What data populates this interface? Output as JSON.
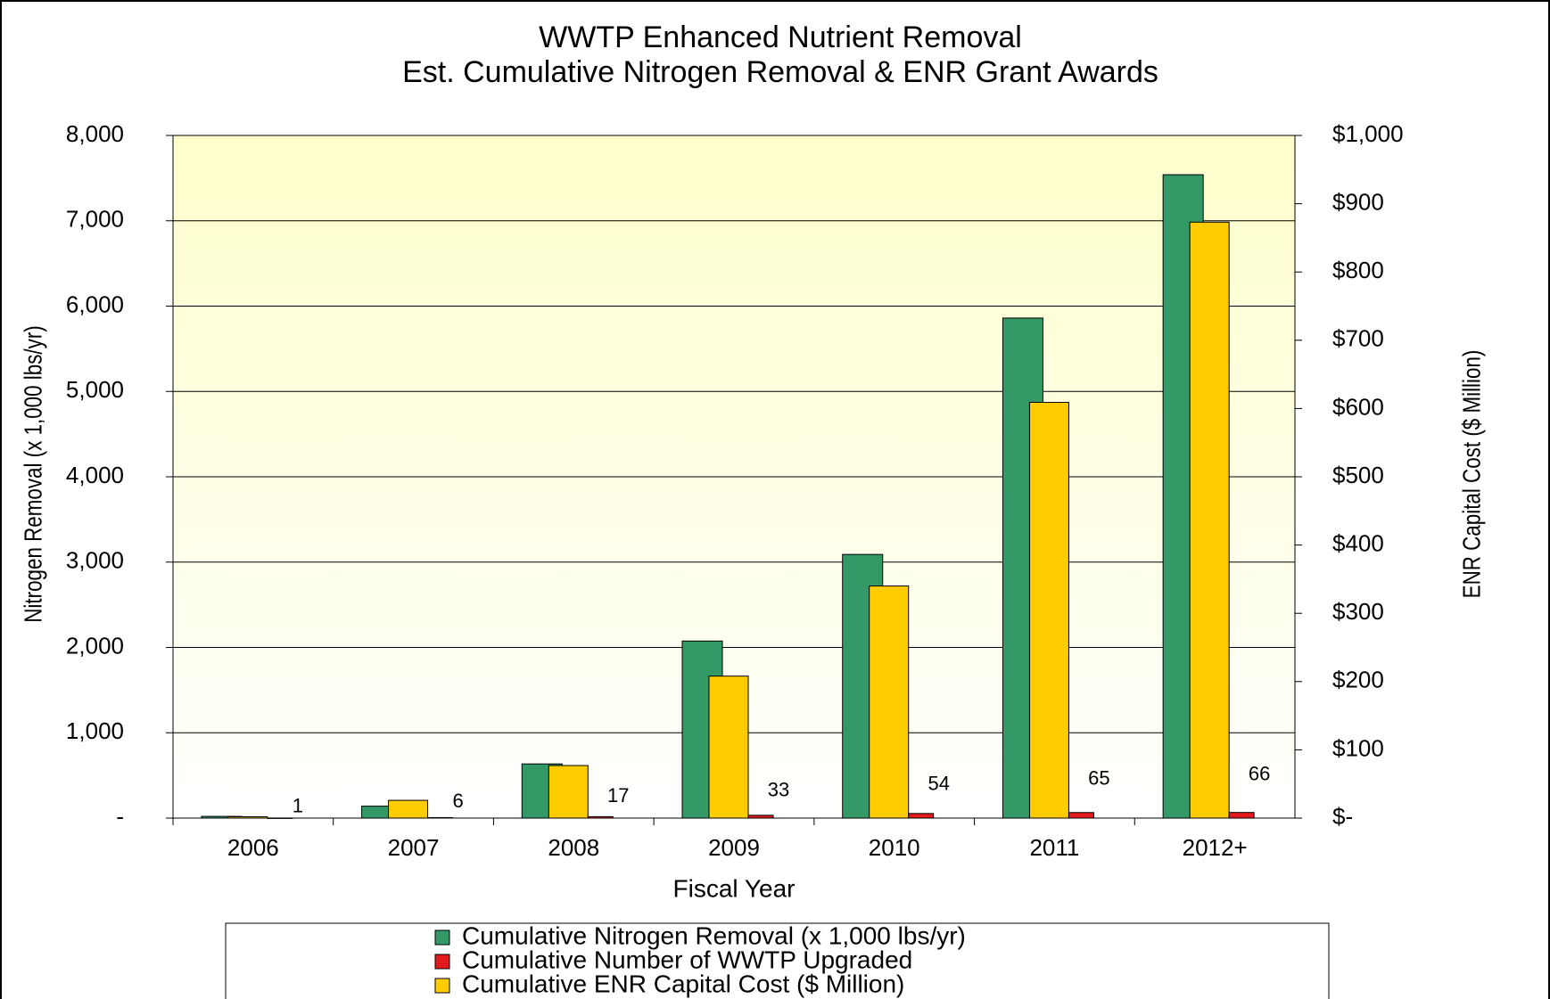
{
  "chart_data": {
    "type": "bar",
    "title": "WWTP Enhanced Nutrient Removal",
    "subtitle": "Est. Cumulative Nitrogen Removal & ENR Grant Awards",
    "x_label": "Fiscal Year",
    "y_label": "Nitrogen Removal (x 1,000 lbs/yr)",
    "y2_label": "ENR Capital Cost ($ Million)",
    "categories": [
      "2006",
      "2007",
      "2008",
      "2009",
      "2010",
      "2011",
      "2012+"
    ],
    "series": [
      {
        "name": "Cumulative Nitrogen Removal (x 1,000 lbs/yr)",
        "color": "#339966",
        "values": [
          20,
          140,
          635,
          2075,
          3090,
          5860,
          7540
        ]
      },
      {
        "name": "Cumulative Number of WWTP Upgraded",
        "color": "#e31a1c",
        "values": [
          1,
          6,
          17,
          33,
          54,
          65,
          66
        ],
        "show_labels": true
      },
      {
        "name": "Cumulative ENR Capital Cost ($ Million)",
        "color": "#ffcc00",
        "values": [
          2,
          26,
          77,
          208,
          340,
          609,
          873
        ],
        "axis": "y2"
      }
    ],
    "ylim": [
      0,
      8000
    ],
    "yticks": [
      {
        "value": 0,
        "label": "-"
      },
      {
        "value": 1000,
        "label": "1,000"
      },
      {
        "value": 2000,
        "label": "2,000"
      },
      {
        "value": 3000,
        "label": "3,000"
      },
      {
        "value": 4000,
        "label": "4,000"
      },
      {
        "value": 5000,
        "label": "5,000"
      },
      {
        "value": 6000,
        "label": "6,000"
      },
      {
        "value": 7000,
        "label": "7,000"
      },
      {
        "value": 8000,
        "label": "8,000"
      }
    ],
    "y2lim": [
      0,
      1000
    ],
    "y2ticks": [
      {
        "value": 0,
        "label": "$-"
      },
      {
        "value": 100,
        "label": "$100"
      },
      {
        "value": 200,
        "label": "$200"
      },
      {
        "value": 300,
        "label": "$300"
      },
      {
        "value": 400,
        "label": "$400"
      },
      {
        "value": 500,
        "label": "$500"
      },
      {
        "value": 600,
        "label": "$600"
      },
      {
        "value": 700,
        "label": "$700"
      },
      {
        "value": 800,
        "label": "$800"
      },
      {
        "value": 900,
        "label": "$900"
      },
      {
        "value": 1000,
        "label": "$1,000"
      }
    ],
    "grid": true
  }
}
